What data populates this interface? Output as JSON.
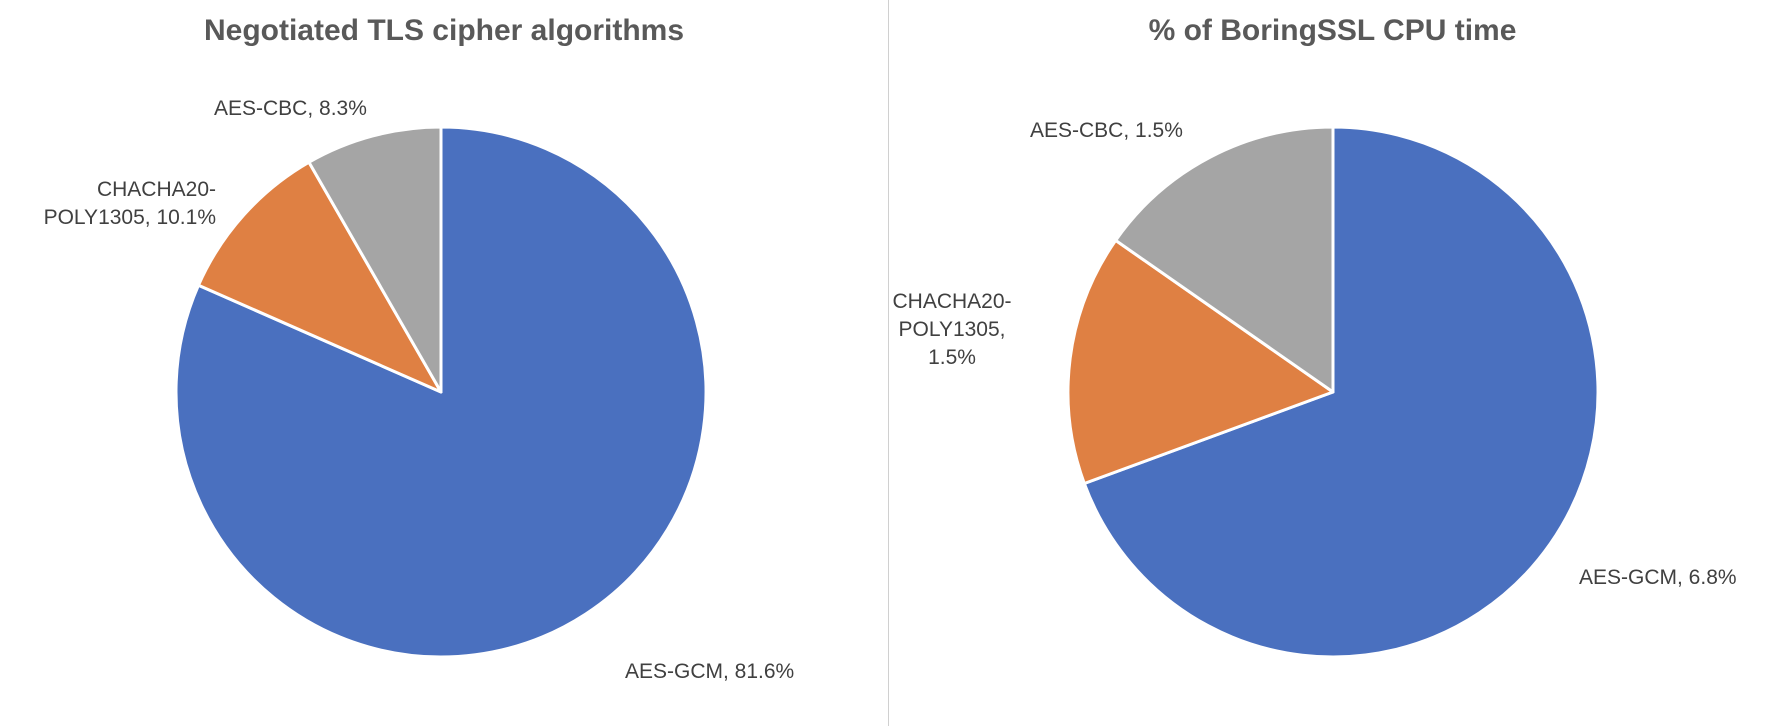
{
  "chart_data": [
    {
      "type": "pie",
      "title": "Negotiated TLS cipher algorithms",
      "start_angle_deg": 0,
      "direction": "clockwise",
      "slices": [
        {
          "label": [
            "AES-GCM, 81.6%"
          ],
          "value": 81.6,
          "color": "#4a70bf"
        },
        {
          "label": [
            "CHACHA20-",
            "POLY1305, 10.1%"
          ],
          "value": 10.1,
          "color": "#df8043"
        },
        {
          "label": [
            "AES-CBC, 8.3%"
          ],
          "value": 8.3,
          "color": "#a5a5a5"
        }
      ]
    },
    {
      "type": "pie",
      "title": "% of BoringSSL CPU time",
      "start_angle_deg": 0,
      "direction": "clockwise",
      "slices": [
        {
          "label": [
            "AES-GCM, 6.8%"
          ],
          "value": 6.8,
          "color": "#4a70bf"
        },
        {
          "label": [
            "CHACHA20-",
            "POLY1305,",
            "1.5%"
          ],
          "value": 1.5,
          "color": "#df8043"
        },
        {
          "label": [
            "AES-CBC, 1.5%"
          ],
          "value": 1.5,
          "color": "#a5a5a5"
        }
      ]
    }
  ]
}
